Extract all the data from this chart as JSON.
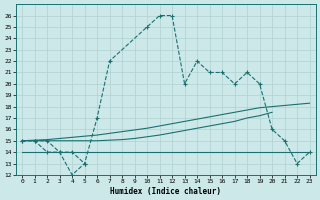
{
  "title": "",
  "xlabel": "Humidex (Indice chaleur)",
  "bg_color": "#cce8e8",
  "grid_color": "#b0d0d0",
  "line_color": "#1a7070",
  "xlim": [
    -0.5,
    23.5
  ],
  "ylim": [
    12,
    27
  ],
  "yticks": [
    12,
    13,
    14,
    15,
    16,
    17,
    18,
    19,
    20,
    21,
    22,
    23,
    24,
    25,
    26
  ],
  "xticks": [
    0,
    1,
    2,
    3,
    4,
    5,
    6,
    7,
    8,
    9,
    10,
    11,
    12,
    13,
    14,
    15,
    16,
    17,
    18,
    19,
    20,
    21,
    22,
    23
  ],
  "line1_x": [
    0,
    1,
    2,
    3,
    4,
    5,
    6,
    7,
    10,
    11,
    12,
    13,
    14,
    15,
    16,
    17,
    18,
    19,
    20,
    21,
    22,
    23
  ],
  "line1_y": [
    15,
    15,
    15,
    14,
    12,
    13,
    17,
    22,
    25,
    26,
    26,
    20,
    22,
    21,
    21,
    20,
    21,
    20,
    16,
    15,
    13,
    14
  ],
  "line2_x": [
    0,
    1,
    2,
    3,
    4,
    5
  ],
  "line2_y": [
    15,
    15,
    14,
    14,
    14,
    13
  ],
  "line3_x": [
    0,
    1,
    2,
    3,
    4,
    5,
    6,
    7,
    8,
    9,
    10,
    11,
    12,
    13,
    14,
    15,
    16,
    17,
    18,
    19,
    20,
    21,
    22,
    23
  ],
  "line3_y": [
    14.0,
    14.0,
    14.0,
    14.0,
    14.0,
    14.0,
    14.0,
    14.0,
    14.0,
    14.0,
    14.0,
    14.0,
    14.0,
    14.0,
    14.0,
    14.0,
    14.0,
    14.0,
    14.0,
    14.0,
    14.0,
    14.0,
    14.0,
    14.0
  ],
  "line4_x": [
    0,
    1,
    2,
    3,
    4,
    5,
    6,
    7,
    8,
    9,
    10,
    11,
    12,
    13,
    14,
    15,
    16,
    17,
    18,
    19,
    20
  ],
  "line4_y": [
    15.0,
    15.0,
    15.0,
    15.0,
    15.0,
    15.0,
    15.0,
    15.05,
    15.1,
    15.2,
    15.35,
    15.5,
    15.7,
    15.9,
    16.1,
    16.3,
    16.5,
    16.7,
    17.0,
    17.2,
    17.5
  ],
  "line5_x": [
    0,
    1,
    2,
    3,
    4,
    5,
    6,
    7,
    8,
    9,
    10,
    11,
    12,
    13,
    14,
    15,
    16,
    17,
    18,
    19,
    20,
    21,
    22,
    23
  ],
  "line5_y": [
    15.0,
    15.05,
    15.1,
    15.2,
    15.3,
    15.4,
    15.5,
    15.65,
    15.8,
    15.95,
    16.1,
    16.3,
    16.5,
    16.7,
    16.9,
    17.1,
    17.3,
    17.5,
    17.7,
    17.9,
    18.0,
    18.1,
    18.2,
    18.3
  ]
}
